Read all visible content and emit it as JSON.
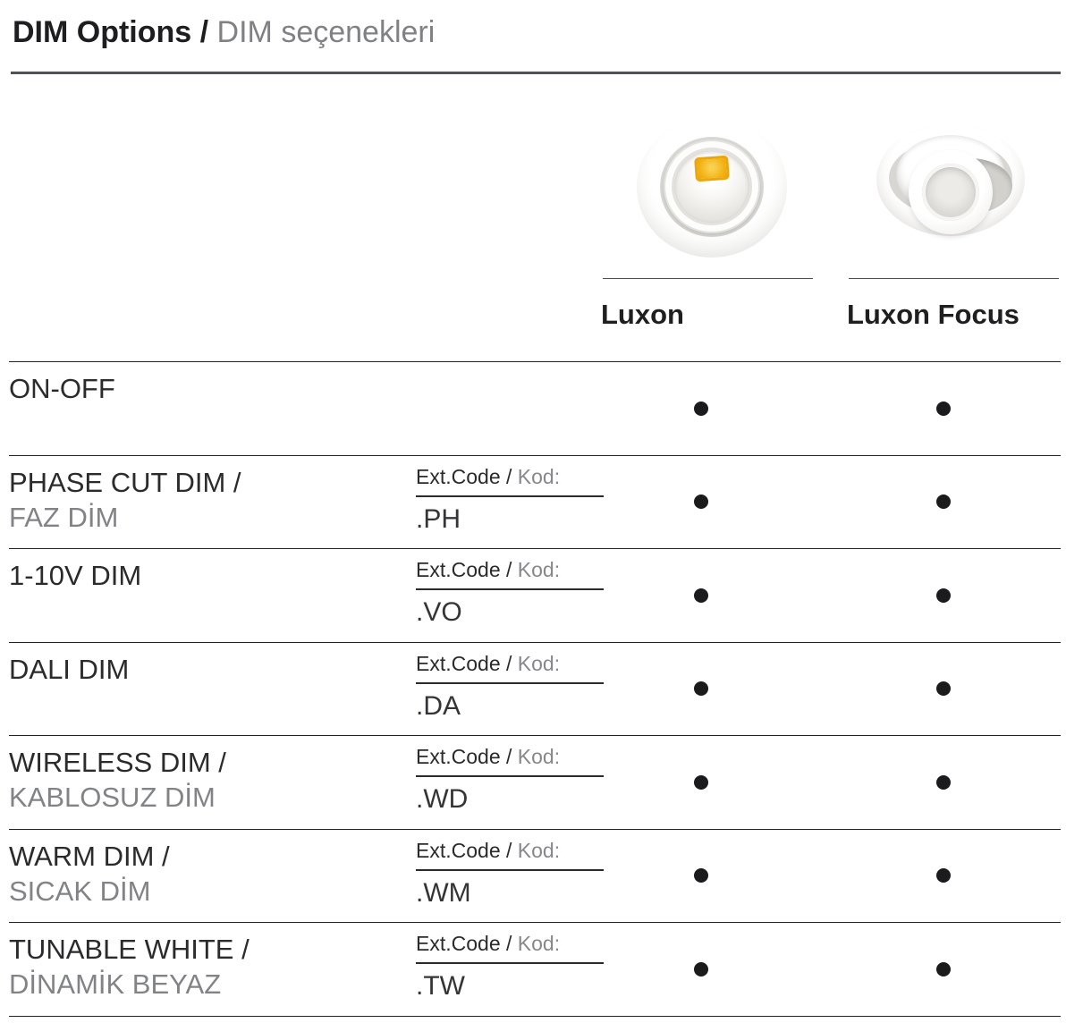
{
  "title": {
    "primary": "DIM Options /",
    "secondary": "DIM seçenekleri"
  },
  "columns": [
    {
      "name": "Luxon"
    },
    {
      "name": "Luxon Focus"
    }
  ],
  "ext_code": {
    "label_primary": "Ext.Code /",
    "label_secondary": "Kod:"
  },
  "rows": [
    {
      "name_primary": "ON-OFF",
      "name_secondary": "",
      "has_code": false,
      "code": "",
      "luxon": true,
      "luxon_focus": true
    },
    {
      "name_primary": "PHASE CUT DIM /",
      "name_secondary": "FAZ DİM",
      "has_code": true,
      "code": ".PH",
      "luxon": true,
      "luxon_focus": true
    },
    {
      "name_primary": "1-10V DIM",
      "name_secondary": "",
      "has_code": true,
      "code": ".VO",
      "luxon": true,
      "luxon_focus": true
    },
    {
      "name_primary": "DALI DIM",
      "name_secondary": "",
      "has_code": true,
      "code": ".DA",
      "luxon": true,
      "luxon_focus": true
    },
    {
      "name_primary": "WIRELESS DIM /",
      "name_secondary": "KABLOSUZ DİM",
      "has_code": true,
      "code": ".WD",
      "luxon": true,
      "luxon_focus": true
    },
    {
      "name_primary": "WARM DIM /",
      "name_secondary": "SICAK DİM",
      "has_code": true,
      "code": ".WM",
      "luxon": true,
      "luxon_focus": true
    },
    {
      "name_primary": "TUNABLE WHITE /",
      "name_secondary": "DİNAMİK BEYAZ",
      "has_code": true,
      "code": ".TW",
      "luxon": true,
      "luxon_focus": true
    }
  ],
  "colors": {
    "text_dark": "#2b2b2d",
    "text_gray": "#828386",
    "rule_gray": "#515254",
    "rule_dark": "#232325",
    "dot": "#1b1b1d",
    "led_amber": "#f2b214"
  }
}
